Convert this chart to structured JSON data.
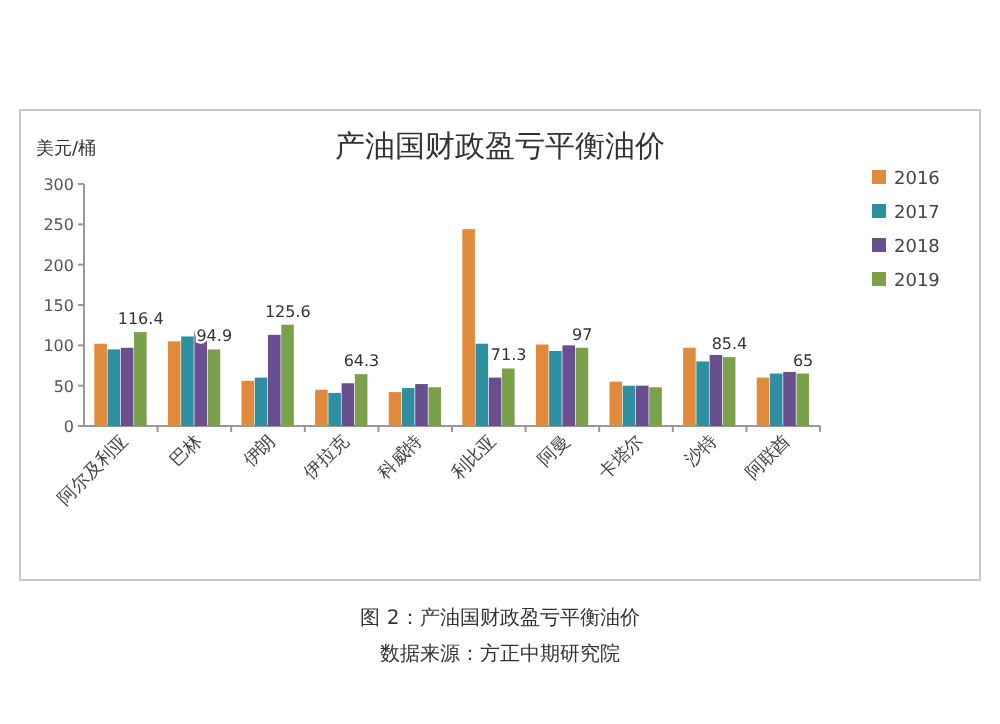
{
  "chart_data": {
    "type": "bar",
    "title": "产油国财政盈亏平衡油价",
    "ylabel": "美元/桶",
    "categories": [
      "阿尔及利亚",
      "巴林",
      "伊朗",
      "伊拉克",
      "科威特",
      "利比亚",
      "阿曼",
      "卡塔尔",
      "沙特",
      "阿联酋"
    ],
    "series": [
      {
        "name": "2016",
        "color": "#e08a3c",
        "values": [
          102,
          105,
          56,
          45,
          42,
          244,
          101,
          55,
          97,
          60
        ]
      },
      {
        "name": "2017",
        "color": "#2e8fa0",
        "values": [
          95,
          111,
          60,
          41,
          47,
          102,
          93,
          50,
          80,
          65
        ]
      },
      {
        "name": "2018",
        "color": "#6a4f8f",
        "values": [
          97,
          117,
          113,
          53,
          52,
          60,
          100,
          50,
          88,
          67
        ]
      },
      {
        "name": "2019",
        "color": "#7aa04a",
        "values": [
          116.4,
          94.9,
          125.6,
          64.3,
          48,
          71.3,
          97,
          48,
          85.4,
          65
        ],
        "value_labels": [
          "116.4",
          "94.9",
          "125.6",
          "64.3",
          null,
          "71.3",
          "97",
          null,
          "85.4",
          "65"
        ]
      }
    ],
    "ylim": [
      0,
      300
    ],
    "yticks": [
      0,
      50,
      100,
      150,
      200,
      250,
      300
    ],
    "legend": "right",
    "annotations": [
      "图 2：产油国财政盈亏平衡油价",
      "数据来源：方正中期研究院"
    ]
  }
}
